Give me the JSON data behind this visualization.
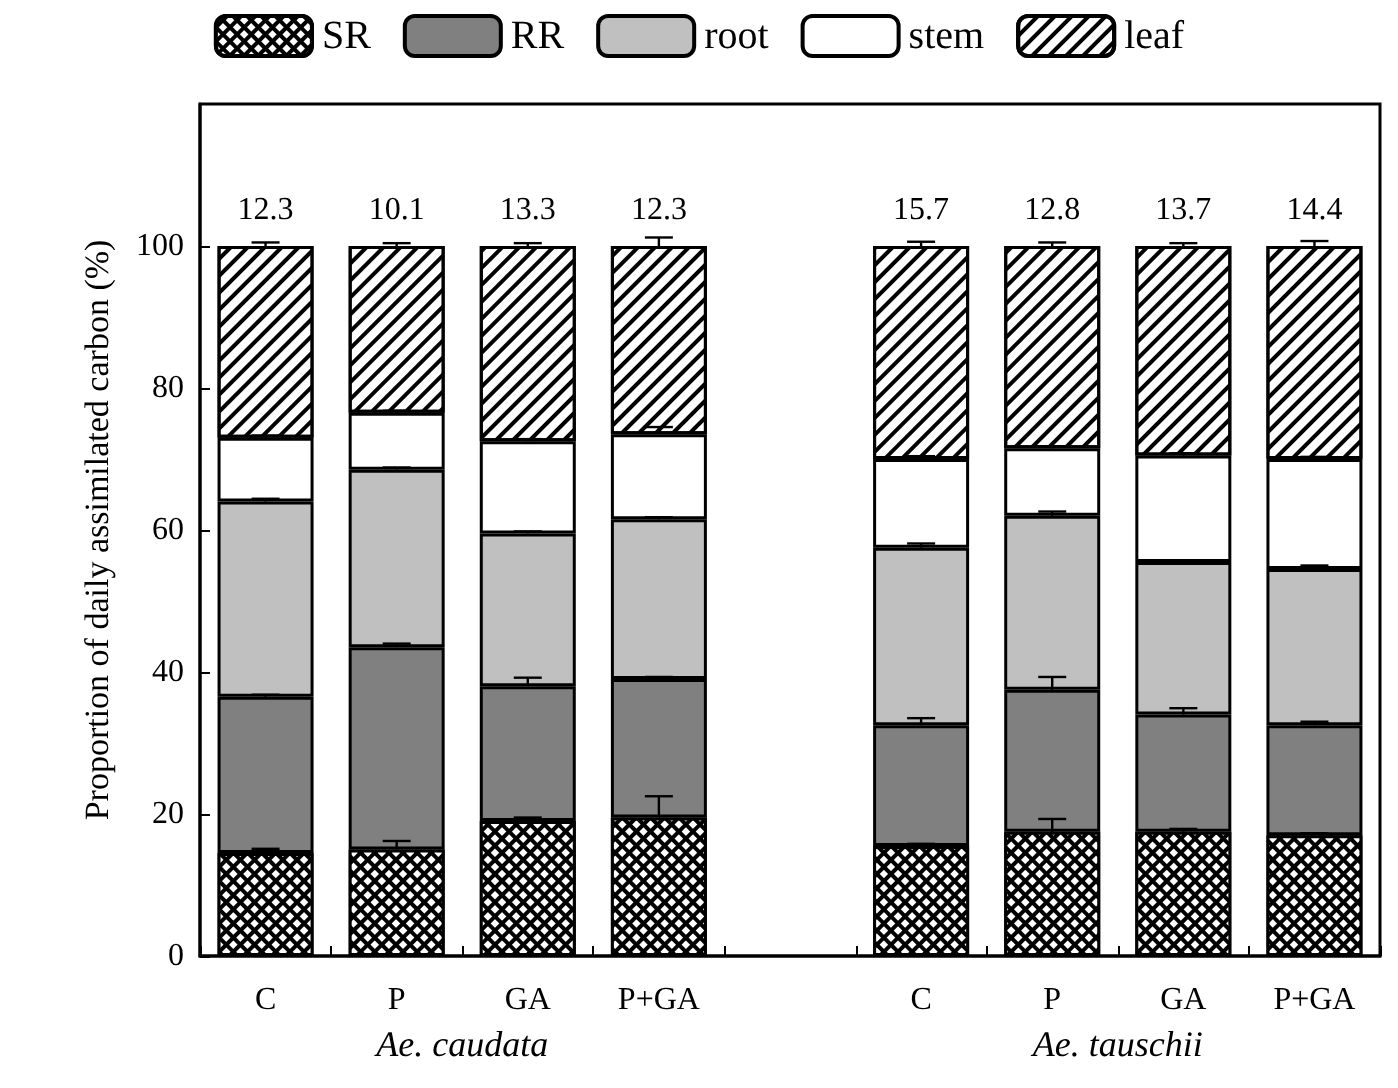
{
  "chart_data": {
    "type": "bar",
    "stacked": true,
    "ylabel": "Proportion of daily assimilated carbon (%)",
    "categories": [
      "C",
      "P",
      "GA",
      "P+GA",
      null,
      "C",
      "P",
      "GA",
      "P+GA"
    ],
    "series": [
      {
        "name": "SR",
        "color": "#000000",
        "values": [
          14.5,
          15,
          19,
          19.5,
          null,
          15.5,
          17.5,
          17.5,
          17
        ],
        "errors": [
          0.6,
          1.2,
          0.5,
          3,
          null,
          0.3,
          1.8,
          0.4,
          0.3
        ]
      },
      {
        "name": "RR",
        "color": "#808080",
        "values": [
          22,
          28.5,
          19,
          19.5,
          null,
          17,
          20,
          16.5,
          15.5
        ],
        "errors": [
          0.3,
          0.5,
          1.2,
          0.3,
          null,
          1,
          1.8,
          0.9,
          0.5
        ]
      },
      {
        "name": "root",
        "color": "#c0c0c0",
        "values": [
          27.5,
          25,
          21.5,
          22.5,
          null,
          25,
          24.5,
          21.5,
          22
        ],
        "errors": [
          0.4,
          0.3,
          0.3,
          0.3,
          null,
          0.6,
          0.6,
          0.2,
          0.5
        ]
      },
      {
        "name": "stem",
        "color": "#ffffff",
        "values": [
          9,
          8,
          13,
          12,
          null,
          12.5,
          9.5,
          15,
          15.5
        ],
        "errors": [
          0.3,
          0.3,
          0.3,
          1,
          null,
          0.4,
          0.3,
          0.3,
          0.3
        ]
      },
      {
        "name": "leaf",
        "color": "#ffffff",
        "values": [
          27,
          23.5,
          27.5,
          26.5,
          null,
          30,
          28.5,
          29.5,
          30
        ],
        "errors": [
          0.5,
          0.4,
          0.4,
          1.2,
          null,
          0.6,
          0.5,
          0.4,
          0.7
        ]
      }
    ],
    "annotations": [
      "12.3",
      "10.1",
      "13.3",
      "12.3",
      "15.7",
      "12.8",
      "13.7",
      "14.4",
      "Ae. caudata",
      "Ae. tauschii"
    ],
    "ylim": [
      0,
      120
    ],
    "yticks": [
      0,
      20,
      40,
      60,
      80,
      100
    ],
    "grid": false,
    "legend": "top"
  }
}
